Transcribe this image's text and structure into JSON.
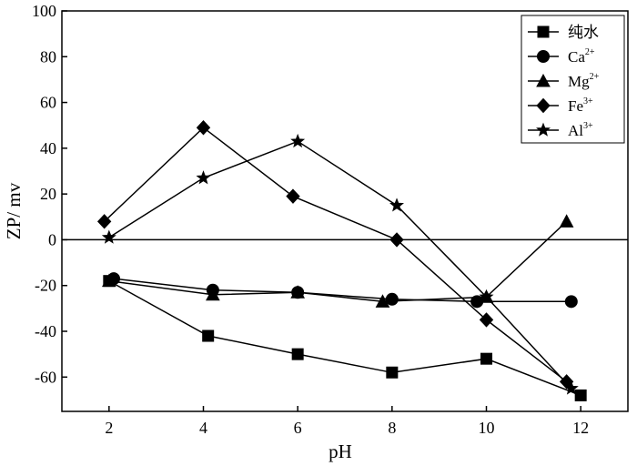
{
  "chart_data": {
    "type": "line",
    "xlabel": "pH",
    "ylabel": "ZP/ mv",
    "xlim": [
      1,
      13
    ],
    "ylim": [
      -75,
      100
    ],
    "xticks": [
      2,
      4,
      6,
      8,
      10,
      12
    ],
    "yticks": [
      100,
      80,
      60,
      40,
      20,
      0,
      -20,
      -40,
      -60
    ],
    "reference_line_y": 0,
    "grid": false,
    "legend_position": "top-right",
    "series": [
      {
        "name": "纯水",
        "name_base": "纯水",
        "name_sup": "",
        "marker": "square",
        "x": [
          2.0,
          4.1,
          6.0,
          8.0,
          10.0,
          12.0
        ],
        "y": [
          -18,
          -42,
          -50,
          -58,
          -52,
          -68
        ]
      },
      {
        "name": "Ca2+",
        "name_base": "Ca",
        "name_sup": "2+",
        "marker": "circle",
        "x": [
          2.1,
          4.2,
          6.0,
          8.0,
          9.8,
          11.8
        ],
        "y": [
          -17,
          -22,
          -23,
          -26,
          -27,
          -27
        ]
      },
      {
        "name": "Mg2+",
        "name_base": "Mg",
        "name_sup": "2+",
        "marker": "triangle",
        "x": [
          2.0,
          4.2,
          6.0,
          7.8,
          10.0,
          11.7
        ],
        "y": [
          -18,
          -24,
          -23,
          -27,
          -25,
          8
        ]
      },
      {
        "name": "Fe3+",
        "name_base": "Fe",
        "name_sup": "3+",
        "marker": "diamond",
        "x": [
          1.9,
          4.0,
          5.9,
          8.1,
          10.0,
          11.7
        ],
        "y": [
          8,
          49,
          19,
          0,
          -35,
          -62
        ]
      },
      {
        "name": "Al3+",
        "name_base": "Al",
        "name_sup": "3+",
        "marker": "star",
        "x": [
          2.0,
          4.0,
          6.0,
          8.1,
          10.0,
          11.8
        ],
        "y": [
          1,
          27,
          43,
          15,
          -25,
          -65
        ]
      }
    ]
  }
}
